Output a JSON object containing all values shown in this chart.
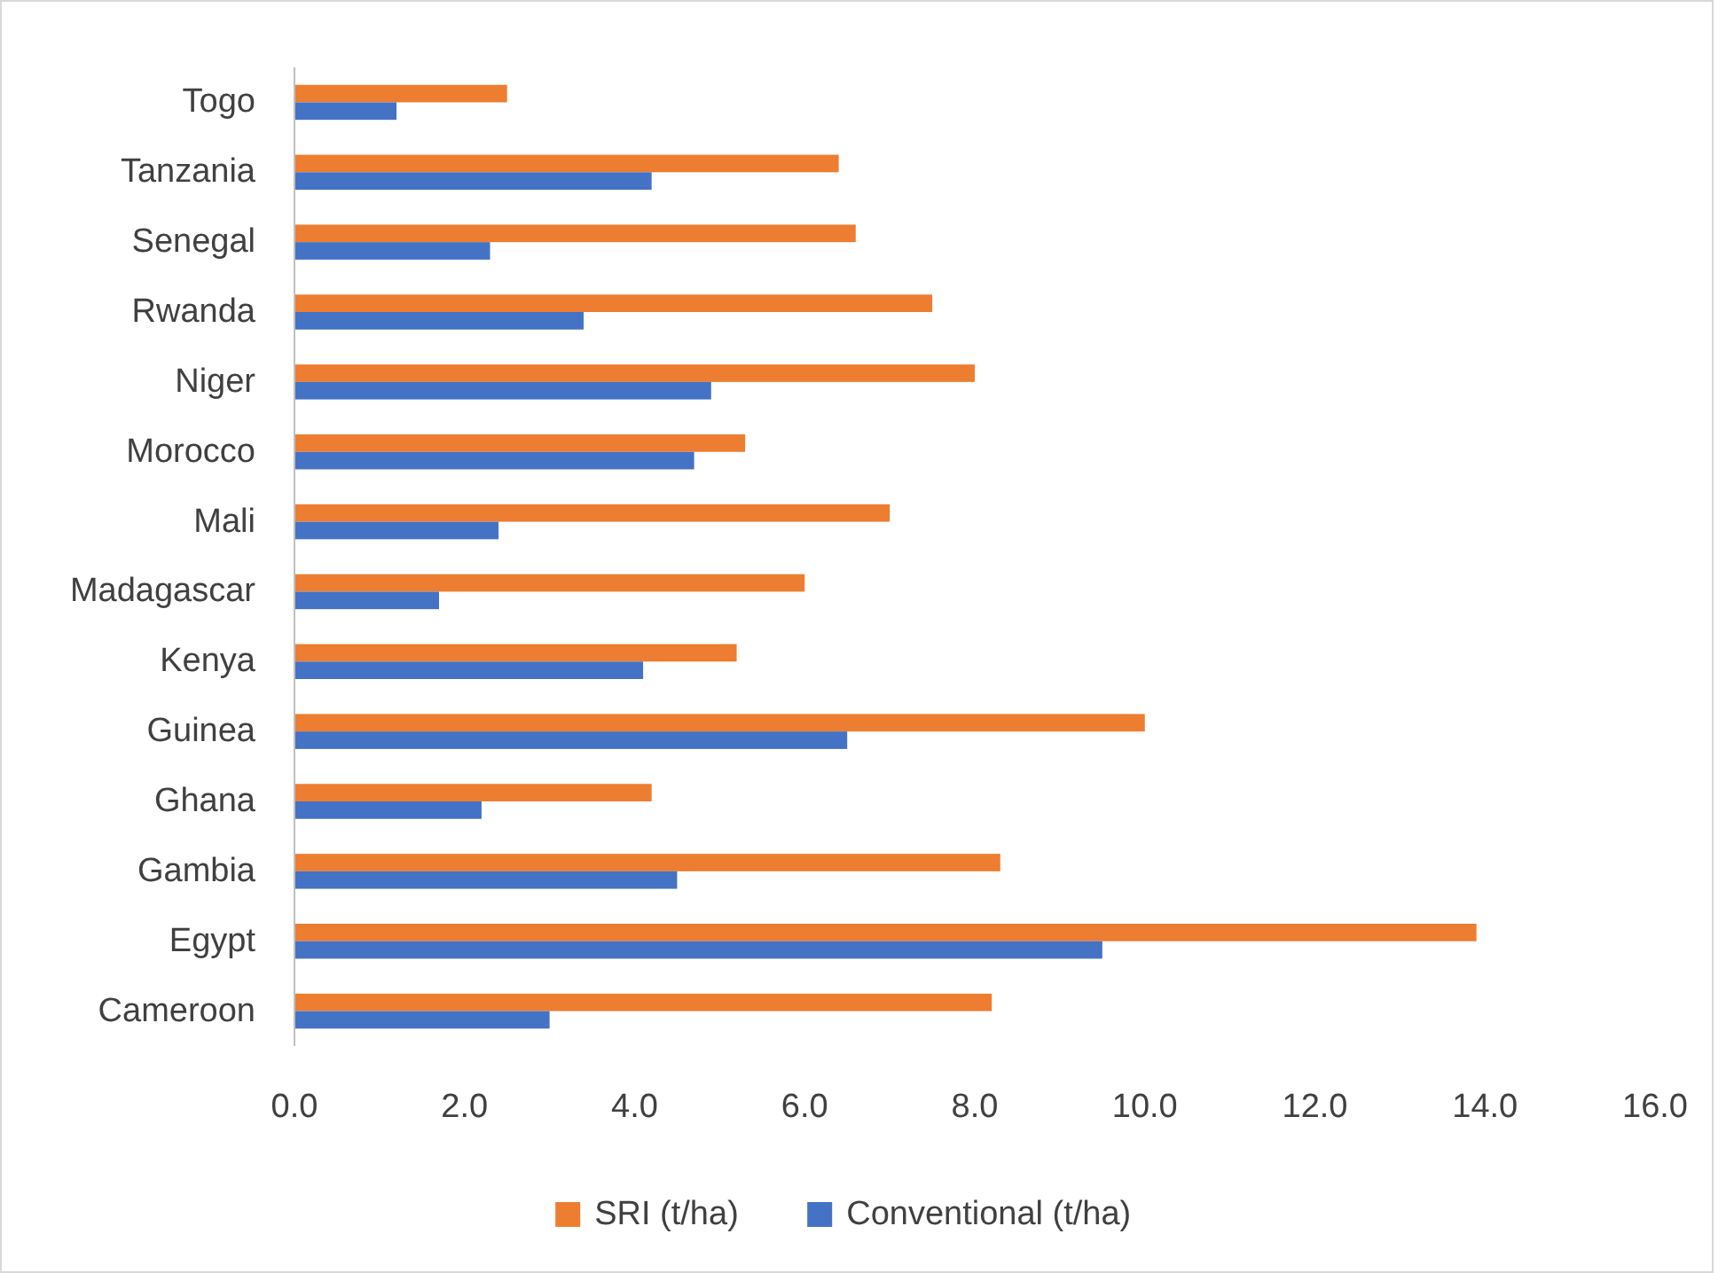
{
  "chart_data": {
    "type": "bar",
    "orientation": "horizontal",
    "categories": [
      "Togo",
      "Tanzania",
      "Senegal",
      "Rwanda",
      "Niger",
      "Morocco",
      "Mali",
      "Madagascar",
      "Kenya",
      "Guinea",
      "Ghana",
      "Gambia",
      "Egypt",
      "Cameroon"
    ],
    "series": [
      {
        "name": "SRI (t/ha)",
        "color": "#ed7d31",
        "values": [
          2.5,
          6.4,
          6.6,
          7.5,
          8.0,
          5.3,
          7.0,
          6.0,
          5.2,
          10.0,
          4.2,
          8.3,
          13.9,
          8.2
        ]
      },
      {
        "name": "Conventional (t/ha)",
        "color": "#4472c4",
        "values": [
          1.2,
          4.2,
          2.3,
          3.4,
          4.9,
          4.7,
          2.4,
          1.7,
          4.1,
          6.5,
          2.2,
          4.5,
          9.5,
          3.0
        ]
      }
    ],
    "xlim": [
      0,
      16
    ],
    "xticks": [
      {
        "value": 0,
        "label": "0.0"
      },
      {
        "value": 2,
        "label": "2.0"
      },
      {
        "value": 4,
        "label": "4.0"
      },
      {
        "value": 6,
        "label": "6.0"
      },
      {
        "value": 8,
        "label": "8.0"
      },
      {
        "value": 10,
        "label": "10.0"
      },
      {
        "value": 12,
        "label": "12.0"
      },
      {
        "value": 14,
        "label": "14.0"
      },
      {
        "value": 16,
        "label": "16.0"
      }
    ],
    "grid": false,
    "legend": "bottom"
  }
}
